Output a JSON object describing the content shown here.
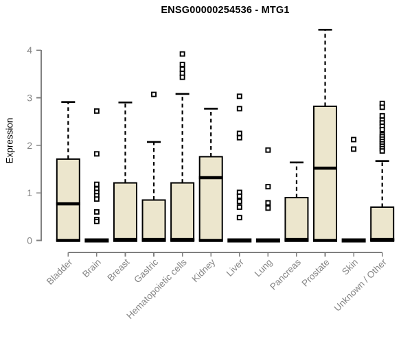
{
  "colors": {
    "box_fill": "#ece6cd",
    "box_border": "#000000",
    "axis_line": "#808080",
    "axis_text": "#858585",
    "title_text": "#000000"
  },
  "chart_data": {
    "type": "boxplot",
    "title": "ENSG00000254536 - MTG1",
    "ylabel": "Expression",
    "xlabel": "",
    "ylim": [
      0,
      4.45
    ],
    "yticks": [
      0,
      1,
      2,
      3,
      4
    ],
    "grid": false,
    "legend": "none",
    "categories": [
      "Bladder",
      "Brain",
      "Breast",
      "Gastric",
      "Hematopoietic cells",
      "Kidney",
      "Liver",
      "Lung",
      "Pancreas",
      "Prostate",
      "Skin",
      "Unknown / Other"
    ],
    "series": [
      {
        "category": "Bladder",
        "whisker_low": 0,
        "q1": 0,
        "median": 0.77,
        "q3": 1.71,
        "whisker_high": 2.91,
        "outliers": []
      },
      {
        "category": "Brain",
        "whisker_low": 0,
        "q1": 0,
        "median": 0,
        "q3": 0,
        "whisker_high": 0,
        "outliers": [
          2.72,
          1.82,
          1.18,
          1.08,
          1.01,
          0.94,
          0.87,
          0.6,
          0.44,
          0.4
        ]
      },
      {
        "category": "Breast",
        "whisker_low": 0,
        "q1": 0,
        "median": 0.02,
        "q3": 1.21,
        "whisker_high": 2.9,
        "outliers": []
      },
      {
        "category": "Gastric",
        "whisker_low": 0,
        "q1": 0,
        "median": 0.02,
        "q3": 0.85,
        "whisker_high": 2.07,
        "outliers": [
          3.07
        ]
      },
      {
        "category": "Hematopoietic cells",
        "whisker_low": 0,
        "q1": 0,
        "median": 0.02,
        "q3": 1.21,
        "whisker_high": 3.08,
        "outliers": [
          3.92,
          3.7,
          3.6,
          3.51,
          3.43
        ]
      },
      {
        "category": "Kidney",
        "whisker_low": 0,
        "q1": 0,
        "median": 1.32,
        "q3": 1.76,
        "whisker_high": 2.77,
        "outliers": []
      },
      {
        "category": "Liver",
        "whisker_low": 0,
        "q1": 0,
        "median": 0,
        "q3": 0,
        "whisker_high": 0,
        "outliers": [
          3.03,
          2.77,
          2.25,
          2.16,
          1.01,
          0.93,
          0.82,
          0.7,
          0.48
        ]
      },
      {
        "category": "Lung",
        "whisker_low": 0,
        "q1": 0,
        "median": 0,
        "q3": 0,
        "whisker_high": 0,
        "outliers": [
          1.9,
          1.13,
          0.79,
          0.68
        ]
      },
      {
        "category": "Pancreas",
        "whisker_low": 0,
        "q1": 0,
        "median": 0.02,
        "q3": 0.9,
        "whisker_high": 1.64,
        "outliers": []
      },
      {
        "category": "Prostate",
        "whisker_low": 0,
        "q1": 0,
        "median": 1.52,
        "q3": 2.82,
        "whisker_high": 4.43,
        "outliers": []
      },
      {
        "category": "Skin",
        "whisker_low": 0,
        "q1": 0,
        "median": 0,
        "q3": 0,
        "whisker_high": 0,
        "outliers": [
          2.12,
          1.92
        ]
      },
      {
        "category": "Unknown / Other",
        "whisker_low": 0,
        "q1": 0,
        "median": 0.02,
        "q3": 0.7,
        "whisker_high": 1.67,
        "outliers": [
          2.88,
          2.8,
          2.62,
          2.53,
          2.47,
          2.4,
          2.33,
          2.22,
          2.18,
          2.13,
          2.08,
          2.03,
          1.98,
          1.93,
          1.88
        ]
      }
    ]
  }
}
